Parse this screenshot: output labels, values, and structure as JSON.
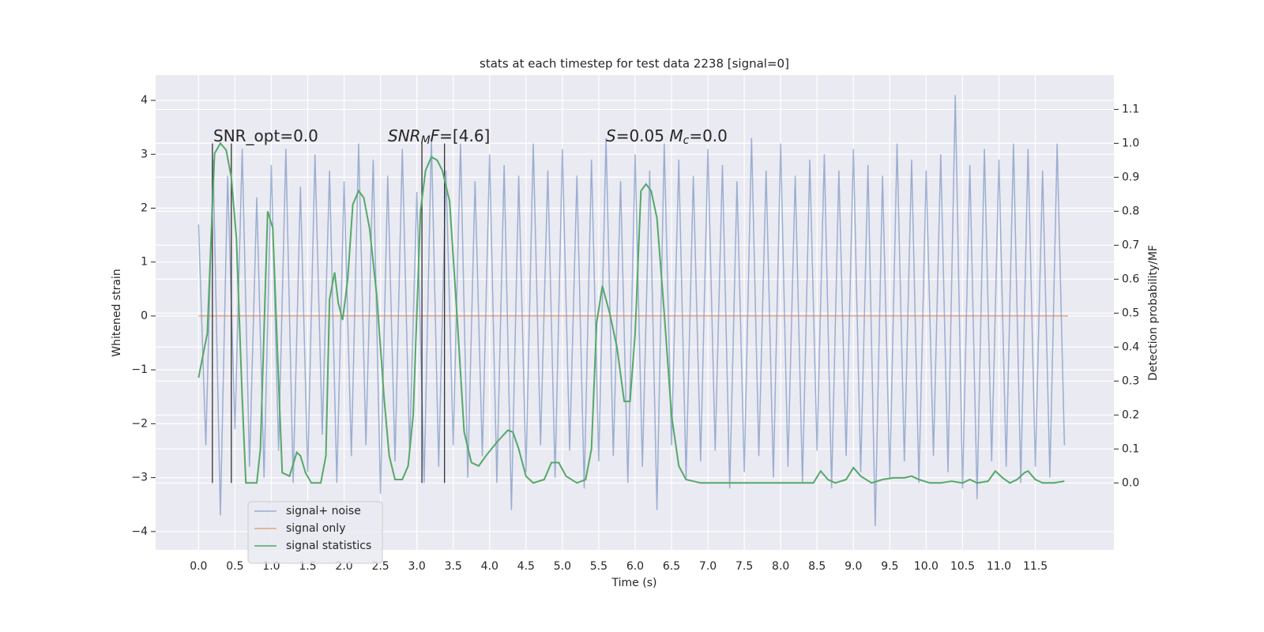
{
  "chart_data": {
    "type": "line",
    "title": "stats at each timestep for test data 2238 [signal=0]",
    "xlabel": "Time (s)",
    "ylabel": "Whitened strain",
    "y2label": "Detection probability/MF",
    "grid": true,
    "legend_loc": "lower left",
    "xlim": [
      -0.59,
      12.58
    ],
    "ylim": [
      -4.34,
      4.47
    ],
    "y2lim": [
      -0.197,
      1.201
    ],
    "xticks": [
      {
        "value": 0,
        "label": "0.0"
      },
      {
        "value": 0.5,
        "label": "0.5"
      },
      {
        "value": 1,
        "label": "1.0"
      },
      {
        "value": 1.5,
        "label": "1.5"
      },
      {
        "value": 2,
        "label": "2.0"
      },
      {
        "value": 2.5,
        "label": "2.5"
      },
      {
        "value": 3,
        "label": "3.0"
      },
      {
        "value": 3.5,
        "label": "3.5"
      },
      {
        "value": 4,
        "label": "4.0"
      },
      {
        "value": 4.5,
        "label": "4.5"
      },
      {
        "value": 5,
        "label": "5.0"
      },
      {
        "value": 5.5,
        "label": "5.5"
      },
      {
        "value": 6,
        "label": "6.0"
      },
      {
        "value": 6.5,
        "label": "6.5"
      },
      {
        "value": 7,
        "label": "7.0"
      },
      {
        "value": 7.5,
        "label": "7.5"
      },
      {
        "value": 8,
        "label": "8.0"
      },
      {
        "value": 8.5,
        "label": "8.5"
      },
      {
        "value": 9,
        "label": "9.0"
      },
      {
        "value": 9.5,
        "label": "9.5"
      },
      {
        "value": 10,
        "label": "10.0"
      },
      {
        "value": 10.5,
        "label": "10.5"
      },
      {
        "value": 11,
        "label": "11.0"
      },
      {
        "value": 11.5,
        "label": "11.5"
      }
    ],
    "yticks": [
      {
        "value": -4,
        "label": "−4"
      },
      {
        "value": -3,
        "label": "−3"
      },
      {
        "value": -2,
        "label": "−2"
      },
      {
        "value": -1,
        "label": "−1"
      },
      0,
      1,
      2,
      3,
      4
    ],
    "y2ticks": [
      {
        "value": 0,
        "label": "0.0"
      },
      {
        "value": 0.1,
        "label": "0.1"
      },
      {
        "value": 0.2,
        "label": "0.2"
      },
      {
        "value": 0.3,
        "label": "0.3"
      },
      {
        "value": 0.4,
        "label": "0.4"
      },
      {
        "value": 0.5,
        "label": "0.5"
      },
      {
        "value": 0.6,
        "label": "0.6"
      },
      {
        "value": 0.7,
        "label": "0.7"
      },
      {
        "value": 0.8,
        "label": "0.8"
      },
      {
        "value": 0.9,
        "label": "0.9"
      },
      {
        "value": 1.0,
        "label": "1.0"
      },
      {
        "value": 1.1,
        "label": "1.1"
      }
    ],
    "annotations": [
      [
        {
          "text": "SNR_opt=0.0"
        }
      ],
      [
        {
          "text": "SNR",
          "italic": true
        },
        {
          "text": "M",
          "italic": true,
          "sub": true
        },
        {
          "text": "F",
          "italic": true
        },
        {
          "text": "=[4.6]"
        }
      ],
      [
        {
          "text": "S",
          "italic": true
        },
        {
          "text": "=0.05   "
        },
        {
          "text": "M",
          "italic": true
        },
        {
          "text": "c",
          "italic": true,
          "sub": true
        },
        {
          "text": "=0.0"
        }
      ]
    ],
    "vlines": [
      0.19,
      0.45,
      3.07,
      3.38
    ],
    "vline_span": [
      -3.1,
      3.2
    ],
    "vline_color": "#333333",
    "series": [
      {
        "name": "signal+ noise",
        "color": "#4c72b0",
        "alpha": 0.5,
        "axis": "y",
        "x": [
          0,
          0.1,
          0.2,
          0.3,
          0.4,
          0.5,
          0.6,
          0.7,
          0.8,
          0.9,
          1,
          1.1,
          1.2,
          1.3,
          1.4,
          1.5,
          1.6,
          1.7,
          1.8,
          1.9,
          2,
          2.1,
          2.2,
          2.3,
          2.4,
          2.5,
          2.6,
          2.7,
          2.8,
          2.9,
          3,
          3.1,
          3.2,
          3.3,
          3.4,
          3.5,
          3.6,
          3.7,
          3.8,
          3.9,
          4,
          4.1,
          4.2,
          4.3,
          4.4,
          4.5,
          4.6,
          4.7,
          4.8,
          4.9,
          5,
          5.1,
          5.2,
          5.3,
          5.4,
          5.5,
          5.6,
          5.7,
          5.8,
          5.9,
          6,
          6.1,
          6.2,
          6.3,
          6.4,
          6.5,
          6.6,
          6.7,
          6.8,
          6.9,
          7,
          7.1,
          7.2,
          7.3,
          7.4,
          7.5,
          7.6,
          7.7,
          7.8,
          7.9,
          8,
          8.1,
          8.2,
          8.3,
          8.4,
          8.5,
          8.6,
          8.7,
          8.8,
          8.9,
          9,
          9.1,
          9.2,
          9.3,
          9.4,
          9.5,
          9.6,
          9.7,
          9.8,
          9.9,
          10,
          10.1,
          10.2,
          10.3,
          10.4,
          10.5,
          10.6,
          10.7,
          10.8,
          10.9,
          11,
          11.1,
          11.2,
          11.3,
          11.4,
          11.5,
          11.6,
          11.7,
          11.8,
          11.9
        ],
        "values": [
          1.7,
          -2.4,
          2.9,
          -3.7,
          2.6,
          -2.1,
          3.1,
          -2.8,
          2.2,
          -3.0,
          2.8,
          -2.5,
          3.1,
          -3.1,
          2.4,
          -2.9,
          3.0,
          -2.2,
          2.7,
          -3.1,
          2.5,
          -2.6,
          3.2,
          -2.4,
          2.9,
          -3.3,
          2.6,
          -2.7,
          3.1,
          -2.5,
          2.3,
          -3.1,
          3.3,
          -2.8,
          2.7,
          -2.4,
          3.2,
          -3.0,
          2.5,
          -2.6,
          3.0,
          -3.1,
          2.8,
          -3.6,
          2.6,
          -2.9,
          3.2,
          -2.4,
          2.7,
          -3.0,
          3.1,
          -2.5,
          2.6,
          -3.2,
          2.9,
          -2.7,
          3.3,
          -2.6,
          2.5,
          -3.1,
          3.0,
          -2.8,
          2.7,
          -3.6,
          3.2,
          -2.4,
          2.9,
          -3.0,
          2.6,
          -2.7,
          3.1,
          -2.5,
          2.8,
          -3.2,
          2.5,
          -2.9,
          3.3,
          -2.6,
          2.7,
          -3.0,
          3.2,
          -2.8,
          2.6,
          -3.1,
          2.9,
          -2.5,
          3.0,
          -3.2,
          2.7,
          -2.6,
          3.1,
          -2.9,
          2.8,
          -3.9,
          2.6,
          -3.0,
          3.2,
          -2.7,
          2.9,
          -3.1,
          2.7,
          -2.6,
          3.0,
          -2.9,
          4.1,
          -3.2,
          2.8,
          -3.4,
          3.1,
          -2.7,
          2.9,
          -2.8,
          3.2,
          -3.1,
          3.1,
          -2.8,
          2.7,
          -3.0,
          3.2,
          -2.4
        ]
      },
      {
        "name": "signal only",
        "color": "#dd8452",
        "alpha": 0.7,
        "axis": "y",
        "x": [
          0,
          11.95
        ],
        "values": [
          0,
          0
        ]
      },
      {
        "name": "signal statistics",
        "color": "#55a868",
        "alpha": 1,
        "axis": "y2",
        "x": [
          0,
          0.12,
          0.22,
          0.3,
          0.38,
          0.45,
          0.52,
          0.6,
          0.65,
          0.8,
          0.85,
          0.95,
          1.02,
          1.1,
          1.15,
          1.25,
          1.35,
          1.4,
          1.47,
          1.55,
          1.68,
          1.75,
          1.8,
          1.87,
          1.92,
          1.98,
          2.05,
          2.12,
          2.2,
          2.27,
          2.35,
          2.45,
          2.55,
          2.62,
          2.7,
          2.8,
          2.88,
          2.95,
          3.05,
          3.12,
          3.2,
          3.28,
          3.35,
          3.45,
          3.55,
          3.65,
          3.75,
          3.85,
          3.95,
          4.1,
          4.25,
          4.32,
          4.4,
          4.5,
          4.6,
          4.75,
          4.85,
          4.95,
          5.05,
          5.2,
          5.32,
          5.4,
          5.47,
          5.55,
          5.65,
          5.75,
          5.85,
          5.93,
          6.0,
          6.08,
          6.15,
          6.22,
          6.3,
          6.4,
          6.5,
          6.6,
          6.7,
          6.9,
          7.5,
          8.0,
          8.45,
          8.55,
          8.65,
          8.75,
          8.9,
          9.0,
          9.1,
          9.25,
          9.4,
          9.55,
          9.7,
          9.8,
          9.9,
          10.05,
          10.2,
          10.35,
          10.5,
          10.6,
          10.7,
          10.85,
          10.95,
          11.05,
          11.15,
          11.25,
          11.35,
          11.4,
          11.5,
          11.6,
          11.75,
          11.9
        ],
        "values": [
          0.31,
          0.44,
          0.97,
          1.0,
          0.98,
          0.9,
          0.72,
          0.25,
          0.0,
          0.0,
          0.1,
          0.8,
          0.75,
          0.3,
          0.03,
          0.02,
          0.09,
          0.08,
          0.03,
          0.0,
          0.0,
          0.08,
          0.54,
          0.62,
          0.53,
          0.48,
          0.6,
          0.82,
          0.86,
          0.84,
          0.75,
          0.55,
          0.25,
          0.08,
          0.01,
          0.01,
          0.05,
          0.2,
          0.8,
          0.92,
          0.96,
          0.95,
          0.92,
          0.83,
          0.5,
          0.15,
          0.06,
          0.05,
          0.08,
          0.12,
          0.155,
          0.15,
          0.1,
          0.02,
          0.0,
          0.01,
          0.06,
          0.06,
          0.02,
          0.0,
          0.01,
          0.1,
          0.47,
          0.58,
          0.5,
          0.4,
          0.24,
          0.24,
          0.44,
          0.86,
          0.88,
          0.86,
          0.78,
          0.5,
          0.2,
          0.05,
          0.01,
          0.0,
          0.0,
          0.0,
          0.0,
          0.035,
          0.01,
          0.0,
          0.01,
          0.045,
          0.02,
          0.0,
          0.01,
          0.015,
          0.015,
          0.02,
          0.01,
          0.0,
          0.0,
          0.005,
          0.0,
          0.01,
          0.0,
          0.005,
          0.035,
          0.015,
          0.0,
          0.01,
          0.03,
          0.035,
          0.01,
          0.0,
          0.0,
          0.005
        ]
      }
    ]
  }
}
